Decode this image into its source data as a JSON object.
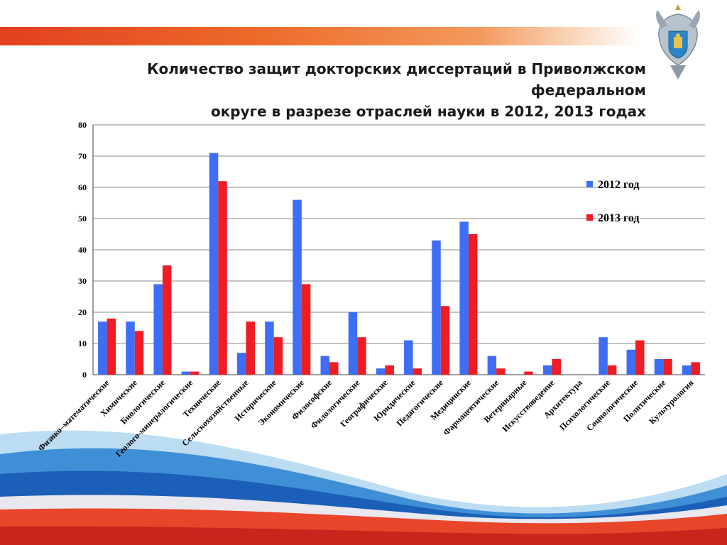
{
  "slide": {
    "title_line1": "Количество защит докторских диссертаций в Приволжском федеральном",
    "title_line2": "округе в разрезе отраслей науки в 2012, 2013 годах"
  },
  "colors": {
    "series_2012": "#3d6ef5",
    "series_2013": "#ef1c24",
    "band": "#e84b22",
    "grid": "#7f7f7f"
  },
  "chart_data": {
    "type": "bar",
    "title": "",
    "xlabel": "",
    "ylabel": "",
    "ylim": [
      0,
      80
    ],
    "yticks": [
      0,
      10,
      20,
      30,
      40,
      50,
      60,
      70,
      80
    ],
    "grid": true,
    "legend_placement": "right",
    "categories": [
      "Физико–математические",
      "Химические",
      "Биологические",
      "Геолого-минералогические",
      "Технические",
      "Сельскохозяйственные",
      "Исторические",
      "Экономические",
      "Философские",
      "Филологические",
      "Географические",
      "Юридические",
      "Педагогические",
      "Медицинские",
      "Фармацевтические",
      "Ветеринарные",
      "Искусствоведение",
      "Архитектура",
      "Психологические",
      "Социологические",
      "Политические",
      "Культурология"
    ],
    "series": [
      {
        "name": "2012 год",
        "color": "#3d6ef5",
        "values": [
          17,
          17,
          29,
          1,
          71,
          7,
          17,
          56,
          6,
          20,
          2,
          11,
          43,
          49,
          6,
          0,
          3,
          0,
          12,
          8,
          5,
          3
        ]
      },
      {
        "name": "2013 год",
        "color": "#ef1c24",
        "values": [
          18,
          14,
          35,
          1,
          62,
          17,
          12,
          29,
          4,
          12,
          3,
          2,
          22,
          45,
          2,
          1,
          5,
          0,
          3,
          11,
          5,
          4
        ]
      }
    ]
  }
}
